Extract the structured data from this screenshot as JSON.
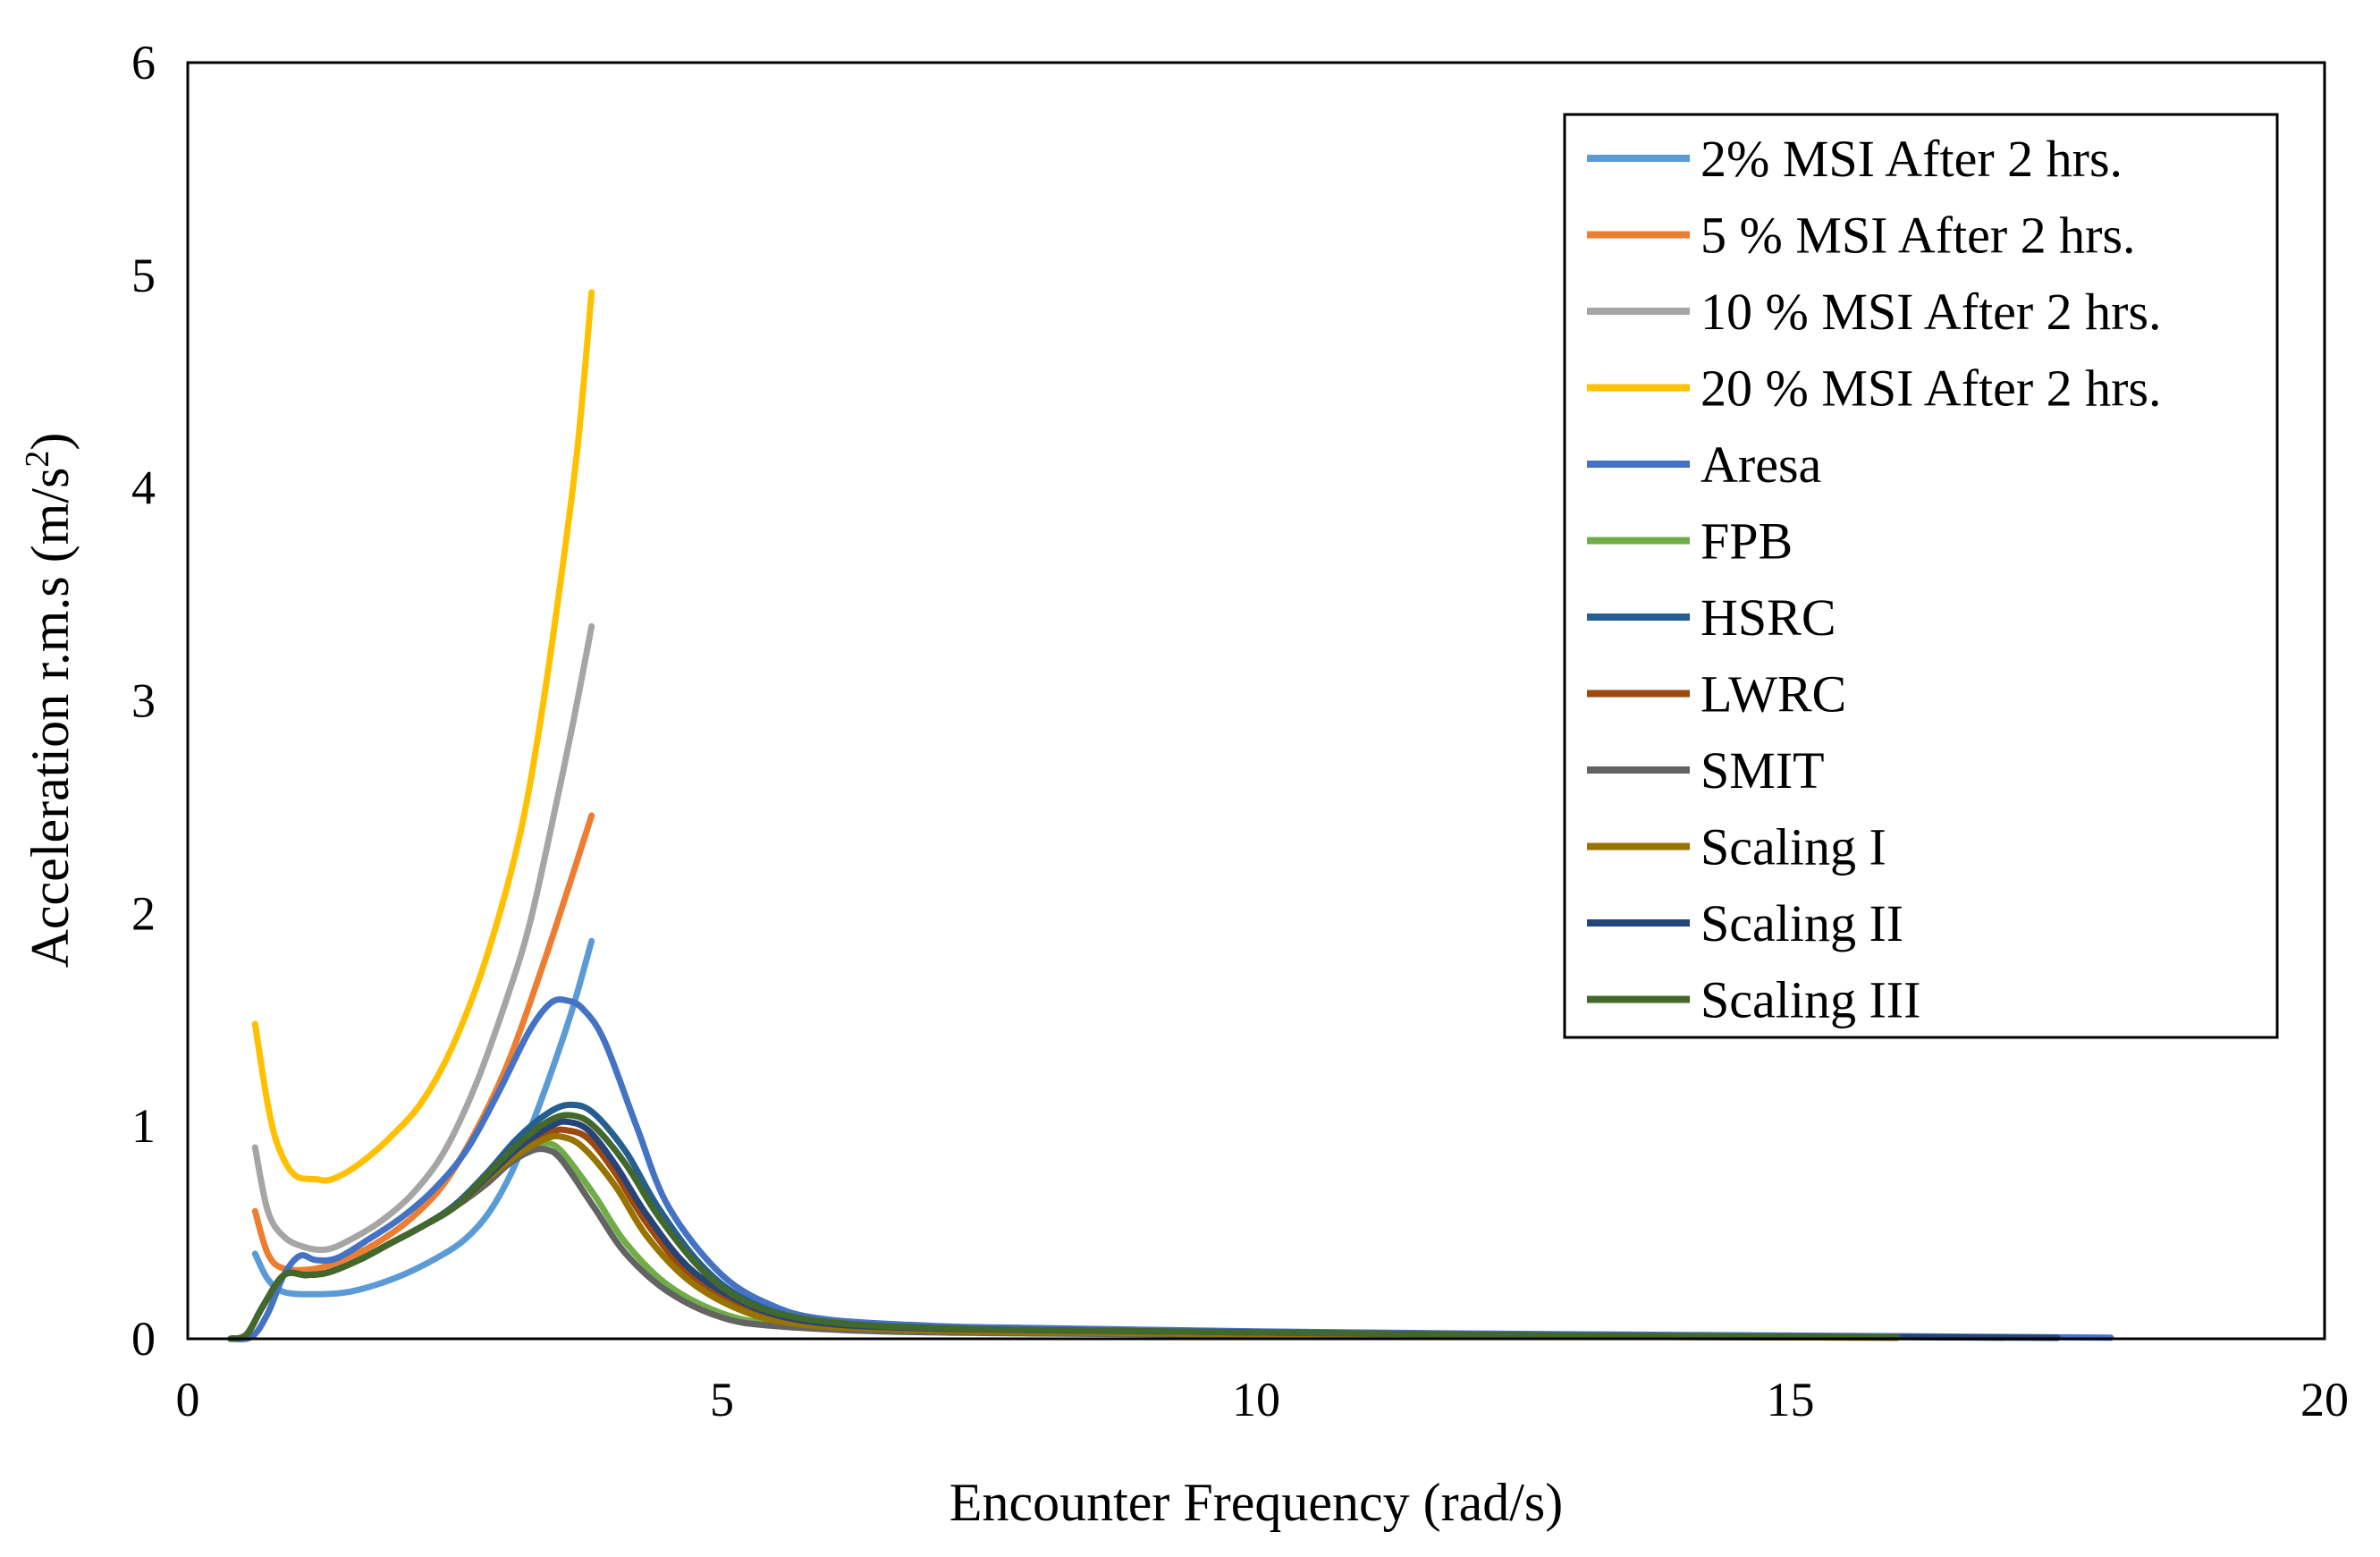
{
  "chart_data": {
    "type": "line",
    "title": "",
    "xlabel": "Encounter Frequency (rad/s)",
    "ylabel": "Acceleration r.m.s (m/s",
    "ylabel_sup": "2",
    "ylabel_close": ")",
    "xlim": [
      0,
      20
    ],
    "ylim": [
      0,
      6
    ],
    "xticks": [
      "0",
      "5",
      "10",
      "15",
      "20"
    ],
    "yticks": [
      "0",
      "1",
      "2",
      "3",
      "4",
      "5",
      "6"
    ],
    "grid": false,
    "legend_position": "top-right",
    "series": [
      {
        "name": "2% MSI After 2 hrs.",
        "color": "#5B9BD5",
        "points": [
          [
            0.63,
            0.4
          ],
          [
            0.75,
            0.28
          ],
          [
            0.9,
            0.22
          ],
          [
            1.2,
            0.21
          ],
          [
            1.5,
            0.22
          ],
          [
            1.8,
            0.26
          ],
          [
            2.1,
            0.32
          ],
          [
            2.4,
            0.4
          ],
          [
            2.6,
            0.47
          ],
          [
            2.8,
            0.58
          ],
          [
            3.0,
            0.75
          ],
          [
            3.2,
            0.98
          ],
          [
            3.4,
            1.25
          ],
          [
            3.6,
            1.55
          ],
          [
            3.78,
            1.87
          ]
        ]
      },
      {
        "name": "5 % MSI After 2 hrs.",
        "color": "#ED7D31",
        "points": [
          [
            0.63,
            0.6
          ],
          [
            0.75,
            0.4
          ],
          [
            0.9,
            0.33
          ],
          [
            1.2,
            0.33
          ],
          [
            1.5,
            0.38
          ],
          [
            1.8,
            0.46
          ],
          [
            2.1,
            0.57
          ],
          [
            2.4,
            0.73
          ],
          [
            2.7,
            0.98
          ],
          [
            3.0,
            1.3
          ],
          [
            3.3,
            1.72
          ],
          [
            3.55,
            2.1
          ],
          [
            3.78,
            2.46
          ]
        ]
      },
      {
        "name": "10 % MSI After 2 hrs.",
        "color": "#A5A5A5",
        "points": [
          [
            0.63,
            0.9
          ],
          [
            0.75,
            0.6
          ],
          [
            0.9,
            0.48
          ],
          [
            1.1,
            0.43
          ],
          [
            1.3,
            0.42
          ],
          [
            1.5,
            0.46
          ],
          [
            1.8,
            0.55
          ],
          [
            2.1,
            0.68
          ],
          [
            2.4,
            0.88
          ],
          [
            2.7,
            1.2
          ],
          [
            3.0,
            1.62
          ],
          [
            3.2,
            1.95
          ],
          [
            3.4,
            2.4
          ],
          [
            3.6,
            2.88
          ],
          [
            3.78,
            3.35
          ]
        ]
      },
      {
        "name": "20 % MSI After 2 hrs.",
        "color": "#FFC000",
        "points": [
          [
            0.63,
            1.48
          ],
          [
            0.75,
            1.1
          ],
          [
            0.85,
            0.9
          ],
          [
            1.0,
            0.77
          ],
          [
            1.2,
            0.75
          ],
          [
            1.35,
            0.75
          ],
          [
            1.6,
            0.82
          ],
          [
            1.9,
            0.95
          ],
          [
            2.2,
            1.12
          ],
          [
            2.5,
            1.4
          ],
          [
            2.8,
            1.8
          ],
          [
            3.1,
            2.35
          ],
          [
            3.3,
            2.9
          ],
          [
            3.5,
            3.6
          ],
          [
            3.65,
            4.2
          ],
          [
            3.78,
            4.92
          ]
        ]
      },
      {
        "name": "Aresa",
        "color": "#4472C4",
        "points": [
          [
            0.4,
            0.0
          ],
          [
            0.6,
            0.01
          ],
          [
            0.75,
            0.12
          ],
          [
            0.9,
            0.3
          ],
          [
            1.05,
            0.39
          ],
          [
            1.2,
            0.37
          ],
          [
            1.4,
            0.38
          ],
          [
            1.7,
            0.47
          ],
          [
            2.0,
            0.57
          ],
          [
            2.3,
            0.7
          ],
          [
            2.6,
            0.88
          ],
          [
            2.9,
            1.15
          ],
          [
            3.2,
            1.45
          ],
          [
            3.4,
            1.58
          ],
          [
            3.55,
            1.59
          ],
          [
            3.7,
            1.55
          ],
          [
            3.9,
            1.4
          ],
          [
            4.2,
            1.0
          ],
          [
            4.5,
            0.62
          ],
          [
            5.0,
            0.3
          ],
          [
            5.5,
            0.15
          ],
          [
            6.0,
            0.09
          ],
          [
            7.0,
            0.06
          ],
          [
            8.0,
            0.05
          ],
          [
            10.0,
            0.035
          ],
          [
            12.0,
            0.025
          ],
          [
            14.0,
            0.018
          ],
          [
            16.0,
            0.012
          ],
          [
            18.0,
            0.005
          ]
        ]
      },
      {
        "name": "FPB",
        "color": "#70AD47",
        "points": [
          [
            0.4,
            0.0
          ],
          [
            0.55,
            0.02
          ],
          [
            0.7,
            0.15
          ],
          [
            0.9,
            0.3
          ],
          [
            1.1,
            0.3
          ],
          [
            1.3,
            0.31
          ],
          [
            1.6,
            0.37
          ],
          [
            1.9,
            0.45
          ],
          [
            2.2,
            0.53
          ],
          [
            2.5,
            0.62
          ],
          [
            2.8,
            0.73
          ],
          [
            3.0,
            0.83
          ],
          [
            3.2,
            0.9
          ],
          [
            3.35,
            0.92
          ],
          [
            3.5,
            0.88
          ],
          [
            3.8,
            0.68
          ],
          [
            4.1,
            0.45
          ],
          [
            4.5,
            0.25
          ],
          [
            5.0,
            0.12
          ],
          [
            5.5,
            0.07
          ],
          [
            6.5,
            0.04
          ],
          [
            8.0,
            0.03
          ],
          [
            10.0,
            0.02
          ],
          [
            13.0,
            0.01
          ],
          [
            16.0,
            0.005
          ]
        ]
      },
      {
        "name": "HSRC",
        "color": "#255E91",
        "points": [
          [
            0.4,
            0.0
          ],
          [
            0.55,
            0.02
          ],
          [
            0.7,
            0.15
          ],
          [
            0.9,
            0.3
          ],
          [
            1.1,
            0.3
          ],
          [
            1.3,
            0.31
          ],
          [
            1.6,
            0.37
          ],
          [
            1.9,
            0.45
          ],
          [
            2.2,
            0.53
          ],
          [
            2.5,
            0.63
          ],
          [
            2.8,
            0.78
          ],
          [
            3.1,
            0.95
          ],
          [
            3.4,
            1.07
          ],
          [
            3.6,
            1.1
          ],
          [
            3.8,
            1.06
          ],
          [
            4.1,
            0.88
          ],
          [
            4.4,
            0.62
          ],
          [
            4.8,
            0.35
          ],
          [
            5.2,
            0.19
          ],
          [
            5.7,
            0.1
          ],
          [
            6.5,
            0.06
          ],
          [
            8.0,
            0.04
          ],
          [
            10.0,
            0.03
          ],
          [
            13.0,
            0.015
          ],
          [
            16.0,
            0.008
          ],
          [
            17.0,
            0.005
          ]
        ]
      },
      {
        "name": "LWRC",
        "color": "#9E480E",
        "points": [
          [
            0.4,
            0.0
          ],
          [
            0.55,
            0.02
          ],
          [
            0.7,
            0.15
          ],
          [
            0.9,
            0.3
          ],
          [
            1.1,
            0.3
          ],
          [
            1.3,
            0.31
          ],
          [
            1.6,
            0.37
          ],
          [
            1.9,
            0.45
          ],
          [
            2.2,
            0.53
          ],
          [
            2.5,
            0.62
          ],
          [
            2.8,
            0.75
          ],
          [
            3.1,
            0.88
          ],
          [
            3.4,
            0.97
          ],
          [
            3.55,
            0.98
          ],
          [
            3.75,
            0.94
          ],
          [
            4.0,
            0.78
          ],
          [
            4.3,
            0.54
          ],
          [
            4.7,
            0.3
          ],
          [
            5.2,
            0.15
          ],
          [
            5.7,
            0.08
          ],
          [
            6.5,
            0.05
          ],
          [
            8.0,
            0.035
          ],
          [
            10.0,
            0.025
          ],
          [
            13.0,
            0.012
          ],
          [
            16.0,
            0.006
          ]
        ]
      },
      {
        "name": "SMIT",
        "color": "#636363",
        "points": [
          [
            0.4,
            0.0
          ],
          [
            0.55,
            0.02
          ],
          [
            0.7,
            0.15
          ],
          [
            0.9,
            0.3
          ],
          [
            1.1,
            0.3
          ],
          [
            1.3,
            0.31
          ],
          [
            1.6,
            0.37
          ],
          [
            1.9,
            0.45
          ],
          [
            2.2,
            0.53
          ],
          [
            2.5,
            0.62
          ],
          [
            2.8,
            0.73
          ],
          [
            3.0,
            0.82
          ],
          [
            3.2,
            0.88
          ],
          [
            3.35,
            0.89
          ],
          [
            3.5,
            0.84
          ],
          [
            3.8,
            0.62
          ],
          [
            4.1,
            0.4
          ],
          [
            4.5,
            0.22
          ],
          [
            5.0,
            0.1
          ],
          [
            5.5,
            0.06
          ],
          [
            6.5,
            0.035
          ],
          [
            8.0,
            0.025
          ],
          [
            10.0,
            0.018
          ],
          [
            13.0,
            0.01
          ],
          [
            16.0,
            0.005
          ]
        ]
      },
      {
        "name": "Scaling I",
        "color": "#997300",
        "points": [
          [
            0.4,
            0.0
          ],
          [
            0.55,
            0.02
          ],
          [
            0.7,
            0.15
          ],
          [
            0.9,
            0.3
          ],
          [
            1.1,
            0.3
          ],
          [
            1.3,
            0.31
          ],
          [
            1.6,
            0.37
          ],
          [
            1.9,
            0.45
          ],
          [
            2.2,
            0.53
          ],
          [
            2.5,
            0.62
          ],
          [
            2.8,
            0.75
          ],
          [
            3.1,
            0.87
          ],
          [
            3.35,
            0.94
          ],
          [
            3.5,
            0.95
          ],
          [
            3.7,
            0.9
          ],
          [
            4.0,
            0.72
          ],
          [
            4.3,
            0.48
          ],
          [
            4.7,
            0.27
          ],
          [
            5.2,
            0.13
          ],
          [
            5.7,
            0.07
          ],
          [
            6.5,
            0.045
          ],
          [
            8.0,
            0.03
          ],
          [
            10.0,
            0.022
          ],
          [
            13.0,
            0.011
          ],
          [
            16.0,
            0.005
          ]
        ]
      },
      {
        "name": "Scaling II",
        "color": "#264478",
        "points": [
          [
            0.4,
            0.0
          ],
          [
            0.55,
            0.02
          ],
          [
            0.7,
            0.15
          ],
          [
            0.9,
            0.3
          ],
          [
            1.1,
            0.3
          ],
          [
            1.3,
            0.31
          ],
          [
            1.6,
            0.37
          ],
          [
            1.9,
            0.45
          ],
          [
            2.2,
            0.53
          ],
          [
            2.5,
            0.62
          ],
          [
            2.8,
            0.76
          ],
          [
            3.1,
            0.9
          ],
          [
            3.4,
            1.0
          ],
          [
            3.55,
            1.02
          ],
          [
            3.75,
            0.98
          ],
          [
            4.0,
            0.82
          ],
          [
            4.3,
            0.58
          ],
          [
            4.7,
            0.33
          ],
          [
            5.2,
            0.17
          ],
          [
            5.7,
            0.09
          ],
          [
            6.5,
            0.055
          ],
          [
            8.0,
            0.04
          ],
          [
            10.0,
            0.03
          ],
          [
            13.0,
            0.015
          ],
          [
            16.0,
            0.008
          ],
          [
            17.5,
            0.004
          ]
        ]
      },
      {
        "name": "Scaling III",
        "color": "#43682B",
        "points": [
          [
            0.4,
            0.0
          ],
          [
            0.55,
            0.02
          ],
          [
            0.7,
            0.15
          ],
          [
            0.9,
            0.3
          ],
          [
            1.1,
            0.3
          ],
          [
            1.3,
            0.31
          ],
          [
            1.6,
            0.37
          ],
          [
            1.9,
            0.45
          ],
          [
            2.2,
            0.53
          ],
          [
            2.5,
            0.62
          ],
          [
            2.8,
            0.77
          ],
          [
            3.1,
            0.92
          ],
          [
            3.4,
            1.03
          ],
          [
            3.6,
            1.05
          ],
          [
            3.8,
            1.0
          ],
          [
            4.1,
            0.82
          ],
          [
            4.4,
            0.58
          ],
          [
            4.8,
            0.33
          ],
          [
            5.2,
            0.18
          ],
          [
            5.7,
            0.1
          ],
          [
            6.5,
            0.06
          ],
          [
            8.0,
            0.04
          ],
          [
            10.0,
            0.03
          ],
          [
            13.0,
            0.015
          ],
          [
            16.0,
            0.008
          ]
        ]
      }
    ]
  }
}
